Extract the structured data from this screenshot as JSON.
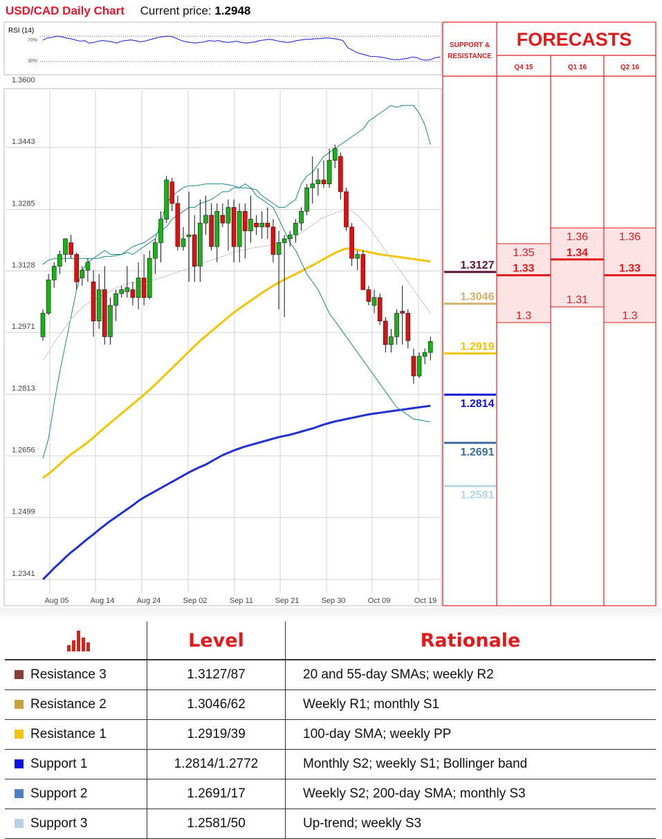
{
  "header": {
    "title": "USD/CAD Daily Chart",
    "price_label": "Current price:",
    "price_value": "1.2948"
  },
  "rsi": {
    "label": "RSI (14)",
    "upper": "70%",
    "lower": "30%",
    "values": [
      64,
      67,
      68,
      70,
      69,
      67,
      66,
      64,
      62,
      63,
      59,
      60,
      62,
      63,
      62,
      61,
      59,
      62,
      63,
      64,
      63,
      61,
      62,
      64,
      66,
      68,
      69,
      70,
      69,
      66,
      63,
      61,
      60,
      59,
      60,
      61,
      63,
      62,
      63,
      61,
      60,
      61,
      62,
      60,
      59,
      60,
      61,
      63,
      64,
      65,
      64,
      62,
      61,
      60,
      61,
      63,
      64,
      65,
      65,
      66,
      66,
      67,
      67,
      66,
      65,
      63,
      52,
      48,
      44,
      42,
      40,
      38,
      38,
      37,
      36,
      34,
      33,
      33,
      34,
      35,
      37,
      36,
      33,
      32,
      33,
      36,
      37
    ]
  },
  "chart_data": {
    "type": "candlestick",
    "title": "USD/CAD Daily Chart",
    "ylim": [
      1.2341,
      1.36
    ],
    "yticks": [
      "1.3600",
      "1.3443",
      "1.3285",
      "1.3128",
      "1.2971",
      "1.2813",
      "1.2656",
      "1.2499",
      "1.2341"
    ],
    "xticks": [
      "Aug 05",
      "Aug 14",
      "Aug 24",
      "Sep 02",
      "Sep 11",
      "Sep 21",
      "Sep 30",
      "Oct 09",
      "Oct 19"
    ],
    "candles": [
      {
        "o": 1.296,
        "h": 1.303,
        "l": 1.295,
        "c": 1.302
      },
      {
        "o": 1.302,
        "h": 1.312,
        "l": 1.3015,
        "c": 1.3105
      },
      {
        "o": 1.3105,
        "h": 1.315,
        "l": 1.3085,
        "c": 1.314
      },
      {
        "o": 1.314,
        "h": 1.318,
        "l": 1.312,
        "c": 1.317
      },
      {
        "o": 1.317,
        "h": 1.32,
        "l": 1.315,
        "c": 1.321
      },
      {
        "o": 1.32,
        "h": 1.322,
        "l": 1.316,
        "c": 1.317
      },
      {
        "o": 1.317,
        "h": 1.3175,
        "l": 1.308,
        "c": 1.31
      },
      {
        "o": 1.311,
        "h": 1.314,
        "l": 1.309,
        "c": 1.313
      },
      {
        "o": 1.313,
        "h": 1.316,
        "l": 1.31,
        "c": 1.315
      },
      {
        "o": 1.31,
        "h": 1.313,
        "l": 1.296,
        "c": 1.3
      },
      {
        "o": 1.3,
        "h": 1.312,
        "l": 1.298,
        "c": 1.308
      },
      {
        "o": 1.308,
        "h": 1.314,
        "l": 1.294,
        "c": 1.296
      },
      {
        "o": 1.296,
        "h": 1.306,
        "l": 1.294,
        "c": 1.304
      },
      {
        "o": 1.304,
        "h": 1.308,
        "l": 1.3,
        "c": 1.307
      },
      {
        "o": 1.307,
        "h": 1.309,
        "l": 1.306,
        "c": 1.308
      },
      {
        "o": 1.3075,
        "h": 1.314,
        "l": 1.306,
        "c": 1.3085
      },
      {
        "o": 1.308,
        "h": 1.31,
        "l": 1.304,
        "c": 1.306
      },
      {
        "o": 1.306,
        "h": 1.315,
        "l": 1.303,
        "c": 1.311
      },
      {
        "o": 1.311,
        "h": 1.317,
        "l": 1.304,
        "c": 1.306
      },
      {
        "o": 1.306,
        "h": 1.318,
        "l": 1.3055,
        "c": 1.316
      },
      {
        "o": 1.316,
        "h": 1.321,
        "l": 1.312,
        "c": 1.32
      },
      {
        "o": 1.32,
        "h": 1.328,
        "l": 1.315,
        "c": 1.326
      },
      {
        "o": 1.326,
        "h": 1.337,
        "l": 1.325,
        "c": 1.336
      },
      {
        "o": 1.3355,
        "h": 1.3365,
        "l": 1.328,
        "c": 1.33
      },
      {
        "o": 1.33,
        "h": 1.332,
        "l": 1.318,
        "c": 1.319
      },
      {
        "o": 1.319,
        "h": 1.324,
        "l": 1.318,
        "c": 1.321
      },
      {
        "o": 1.3215,
        "h": 1.333,
        "l": 1.31,
        "c": 1.322
      },
      {
        "o": 1.322,
        "h": 1.327,
        "l": 1.31,
        "c": 1.314
      },
      {
        "o": 1.314,
        "h": 1.331,
        "l": 1.31,
        "c": 1.325
      },
      {
        "o": 1.325,
        "h": 1.332,
        "l": 1.322,
        "c": 1.327
      },
      {
        "o": 1.327,
        "h": 1.33,
        "l": 1.318,
        "c": 1.319
      },
      {
        "o": 1.319,
        "h": 1.33,
        "l": 1.315,
        "c": 1.328
      },
      {
        "o": 1.327,
        "h": 1.33,
        "l": 1.324,
        "c": 1.325
      },
      {
        "o": 1.325,
        "h": 1.331,
        "l": 1.318,
        "c": 1.329
      },
      {
        "o": 1.329,
        "h": 1.331,
        "l": 1.315,
        "c": 1.319
      },
      {
        "o": 1.319,
        "h": 1.33,
        "l": 1.315,
        "c": 1.328
      },
      {
        "o": 1.328,
        "h": 1.33,
        "l": 1.316,
        "c": 1.323
      },
      {
        "o": 1.323,
        "h": 1.332,
        "l": 1.32,
        "c": 1.326
      },
      {
        "o": 1.325,
        "h": 1.327,
        "l": 1.322,
        "c": 1.324
      },
      {
        "o": 1.324,
        "h": 1.328,
        "l": 1.321,
        "c": 1.325
      },
      {
        "o": 1.325,
        "h": 1.329,
        "l": 1.321,
        "c": 1.324
      },
      {
        "o": 1.324,
        "h": 1.326,
        "l": 1.315,
        "c": 1.317
      },
      {
        "o": 1.317,
        "h": 1.323,
        "l": 1.303,
        "c": 1.32
      },
      {
        "o": 1.32,
        "h": 1.322,
        "l": 1.301,
        "c": 1.321
      },
      {
        "o": 1.321,
        "h": 1.323,
        "l": 1.319,
        "c": 1.322
      },
      {
        "o": 1.322,
        "h": 1.326,
        "l": 1.32,
        "c": 1.325
      },
      {
        "o": 1.325,
        "h": 1.329,
        "l": 1.323,
        "c": 1.328
      },
      {
        "o": 1.328,
        "h": 1.335,
        "l": 1.327,
        "c": 1.334
      },
      {
        "o": 1.334,
        "h": 1.342,
        "l": 1.33,
        "c": 1.335
      },
      {
        "o": 1.335,
        "h": 1.339,
        "l": 1.332,
        "c": 1.336
      },
      {
        "o": 1.336,
        "h": 1.341,
        "l": 1.334,
        "c": 1.335
      },
      {
        "o": 1.335,
        "h": 1.344,
        "l": 1.334,
        "c": 1.341
      },
      {
        "o": 1.341,
        "h": 1.345,
        "l": 1.339,
        "c": 1.344
      },
      {
        "o": 1.342,
        "h": 1.343,
        "l": 1.331,
        "c": 1.333
      },
      {
        "o": 1.333,
        "h": 1.334,
        "l": 1.323,
        "c": 1.324
      },
      {
        "o": 1.324,
        "h": 1.325,
        "l": 1.314,
        "c": 1.316
      },
      {
        "o": 1.316,
        "h": 1.318,
        "l": 1.313,
        "c": 1.317
      },
      {
        "o": 1.317,
        "h": 1.318,
        "l": 1.308,
        "c": 1.308
      },
      {
        "o": 1.308,
        "h": 1.309,
        "l": 1.304,
        "c": 1.305
      },
      {
        "o": 1.304,
        "h": 1.308,
        "l": 1.302,
        "c": 1.306
      },
      {
        "o": 1.306,
        "h": 1.307,
        "l": 1.299,
        "c": 1.3
      },
      {
        "o": 1.3,
        "h": 1.301,
        "l": 1.292,
        "c": 1.294
      },
      {
        "o": 1.294,
        "h": 1.298,
        "l": 1.292,
        "c": 1.296
      },
      {
        "o": 1.296,
        "h": 1.303,
        "l": 1.294,
        "c": 1.302
      },
      {
        "o": 1.3025,
        "h": 1.309,
        "l": 1.294,
        "c": 1.302
      },
      {
        "o": 1.302,
        "h": 1.303,
        "l": 1.293,
        "c": 1.295
      },
      {
        "o": 1.291,
        "h": 1.293,
        "l": 1.284,
        "c": 1.286
      },
      {
        "o": 1.286,
        "h": 1.292,
        "l": 1.2855,
        "c": 1.291
      },
      {
        "o": 1.291,
        "h": 1.293,
        "l": 1.289,
        "c": 1.292
      },
      {
        "o": 1.292,
        "h": 1.296,
        "l": 1.29,
        "c": 1.2948
      }
    ],
    "series": [
      {
        "name": "",
        "color": "#1f2fd0",
        "values": [
          1.2341,
          1.2355,
          1.237,
          1.2383,
          1.2397,
          1.241,
          1.2421,
          1.2433,
          1.2445,
          1.2456,
          1.2468,
          1.2479,
          1.249,
          1.25,
          1.251,
          1.252,
          1.253,
          1.2541,
          1.255,
          1.2558,
          1.2566,
          1.2574,
          1.2582,
          1.259,
          1.2598,
          1.2606,
          1.2614,
          1.2621,
          1.2628,
          1.2634,
          1.2642,
          1.265,
          1.2658,
          1.2664,
          1.267,
          1.2675,
          1.268,
          1.2684,
          1.2688,
          1.2692,
          1.2696,
          1.27,
          1.2704,
          1.2707,
          1.271,
          1.2714,
          1.2718,
          1.2722,
          1.2726,
          1.2731,
          1.2736,
          1.274,
          1.2744,
          1.2747,
          1.275,
          1.2753,
          1.2756,
          1.2759,
          1.2762,
          1.2764,
          1.2766,
          1.2768,
          1.277,
          1.2772,
          1.2774,
          1.2776,
          1.2778,
          1.278,
          1.2782,
          1.2784
        ]
      },
      {
        "name": "",
        "color": "#f5c400",
        "values": [
          1.26,
          1.261,
          1.2622,
          1.2635,
          1.2648,
          1.266,
          1.267,
          1.268,
          1.2691,
          1.2703,
          1.2716,
          1.2728,
          1.274,
          1.2752,
          1.2764,
          1.2776,
          1.2788,
          1.28,
          1.2812,
          1.2825,
          1.2838,
          1.2852,
          1.2866,
          1.288,
          1.2894,
          1.2908,
          1.2922,
          1.2936,
          1.295,
          1.2962,
          1.2974,
          1.2986,
          1.2998,
          1.301,
          1.3022,
          1.3032,
          1.3042,
          1.3052,
          1.3062,
          1.3072,
          1.3081,
          1.309,
          1.3098,
          1.3106,
          1.3113,
          1.312,
          1.3127,
          1.3135,
          1.3142,
          1.315,
          1.3158,
          1.3166,
          1.3174,
          1.318,
          1.3185,
          1.3184,
          1.3182,
          1.3179,
          1.3176,
          1.3173,
          1.317,
          1.3168,
          1.3166,
          1.3164,
          1.3162,
          1.316,
          1.3158,
          1.3156,
          1.3154,
          1.3152
        ]
      },
      {
        "name": "",
        "color": "#1a8a8a",
        "values": [
          1.265,
          1.27,
          1.279,
          1.287,
          1.294,
          1.301,
          1.308,
          1.313,
          1.315,
          1.316,
          1.317,
          1.318,
          1.317,
          1.317,
          1.317,
          1.3175,
          1.317,
          1.318,
          1.319,
          1.32,
          1.321,
          1.325,
          1.33,
          1.332,
          1.333,
          1.334,
          1.3345,
          1.3345,
          1.3347,
          1.335,
          1.335,
          1.335,
          1.335,
          1.3348,
          1.3345,
          1.334,
          1.334,
          1.3338,
          1.3335,
          1.332,
          1.331,
          1.33,
          1.329,
          1.329,
          1.33,
          1.331,
          1.335,
          1.337,
          1.338,
          1.34,
          1.342,
          1.343,
          1.344,
          1.345,
          1.346,
          1.347,
          1.348,
          1.349,
          1.351,
          1.352,
          1.353,
          1.354,
          1.355,
          1.3545,
          1.355,
          1.355,
          1.355,
          1.353,
          1.35,
          1.345
        ]
      },
      {
        "name": "",
        "color": "#1a8a8a",
        "values": [
          1.3145,
          1.3155,
          1.316,
          1.316,
          1.316,
          1.316,
          1.316,
          1.316,
          1.316,
          1.316,
          1.316,
          1.3165,
          1.3165,
          1.3167,
          1.317,
          1.318,
          1.319,
          1.3195,
          1.32,
          1.321,
          1.322,
          1.323,
          1.324,
          1.326,
          1.327,
          1.328,
          1.329,
          1.329,
          1.33,
          1.3305,
          1.331,
          1.332,
          1.333,
          1.333,
          1.334,
          1.334,
          1.335,
          1.334,
          1.332,
          1.331,
          1.33,
          1.329,
          1.326,
          1.323,
          1.32,
          1.318,
          1.315,
          1.312,
          1.31,
          1.308,
          1.305,
          1.302,
          1.3,
          1.298,
          1.296,
          1.294,
          1.292,
          1.29,
          1.288,
          1.286,
          1.284,
          1.282,
          1.28,
          1.278,
          1.277,
          1.276,
          1.275,
          1.2748,
          1.2745,
          1.2743
        ]
      },
      {
        "name": "",
        "color": "#c8c8c8",
        "values": [
          1.29,
          1.292,
          1.2945,
          1.2965,
          1.2985,
          1.3005,
          1.302,
          1.3035,
          1.3045,
          1.3055,
          1.306,
          1.307,
          1.3075,
          1.3085,
          1.309,
          1.3095,
          1.3098,
          1.31,
          1.31,
          1.3102,
          1.3105,
          1.311,
          1.3115,
          1.312,
          1.3125,
          1.313,
          1.3135,
          1.314,
          1.3145,
          1.315,
          1.3155,
          1.316,
          1.3165,
          1.317,
          1.3175,
          1.318,
          1.3182,
          1.3185,
          1.3188,
          1.319,
          1.3192,
          1.3195,
          1.32,
          1.3205,
          1.321,
          1.3215,
          1.3225,
          1.3235,
          1.3245,
          1.3255,
          1.3265,
          1.327,
          1.3275,
          1.328,
          1.3285,
          1.328,
          1.327,
          1.3255,
          1.324,
          1.322,
          1.32,
          1.318,
          1.316,
          1.314,
          1.312,
          1.31,
          1.308,
          1.306,
          1.304,
          1.302
        ]
      }
    ]
  },
  "sr_panel": {
    "header": "SUPPORT & RESISTANCE",
    "levels": [
      {
        "label": "1.3127",
        "value": 1.3127,
        "color": "#5c1338"
      },
      {
        "label": "1.3046",
        "value": 1.3046,
        "color": "#d2b06b"
      },
      {
        "label": "1.2919",
        "value": 1.2919,
        "color": "#f4c400"
      },
      {
        "label": "1.2814",
        "value": 1.2814,
        "color": "#1414d4"
      },
      {
        "label": "1.2691",
        "value": 1.2691,
        "color": "#3b6f9a"
      },
      {
        "label": "1.2581",
        "value": 1.2581,
        "color": "#b6d6dc"
      }
    ]
  },
  "forecasts": {
    "title": "FORECASTS",
    "columns": [
      {
        "quarter": "Q4 15",
        "high": "1.35",
        "mid": "1.33",
        "low": "1.3",
        "high_v": 1.35,
        "mid_v": 1.33,
        "low_v": 1.3
      },
      {
        "quarter": "Q1 16",
        "high": "1.36",
        "mid": "1.34",
        "low": "1.31",
        "high_v": 1.36,
        "mid_v": 1.34,
        "low_v": 1.31
      },
      {
        "quarter": "Q2 16",
        "high": "1.36",
        "mid": "1.33",
        "low": "1.3",
        "high_v": 1.36,
        "mid_v": 1.33,
        "low_v": 1.3
      }
    ]
  },
  "table": {
    "col_level": "Level",
    "col_rationale": "Rationale",
    "rows": [
      {
        "name": "Resistance 3",
        "level": "1.3127/87",
        "rationale": "20 and 55-day SMAs; weekly R2",
        "color": "#8b3a3a"
      },
      {
        "name": "Resistance 2",
        "level": "1.3046/62",
        "rationale": "Weekly R1; monthly S1",
        "color": "#c8a03c"
      },
      {
        "name": "Resistance 1",
        "level": "1.2919/39",
        "rationale": "100-day SMA; weekly PP",
        "color": "#f5c400"
      },
      {
        "name": "Support 1",
        "level": "1.2814/1.2772",
        "rationale": "Monthly S2; weekly S1; Bollinger band",
        "color": "#1010e0"
      },
      {
        "name": "Support 2",
        "level": "1.2691/17",
        "rationale": "Weekly S2; 200-day SMA; monthly S3",
        "color": "#4a80c0"
      },
      {
        "name": "Support 3",
        "level": "1.2581/50",
        "rationale": "Up-trend; weekly S3",
        "color": "#b8d0e8"
      }
    ]
  }
}
